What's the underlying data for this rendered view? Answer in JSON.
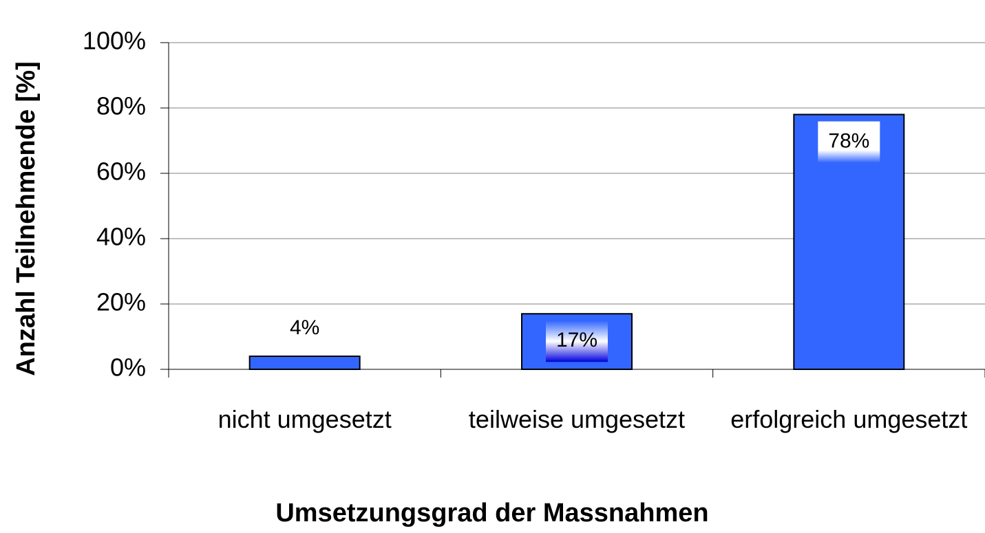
{
  "chart_data": {
    "type": "bar",
    "categories": [
      "nicht umgesetzt",
      "teilweise umgesetzt",
      "erfolgreich umgesetzt"
    ],
    "values": [
      4,
      17,
      78
    ],
    "value_labels": [
      "4%",
      "17%",
      "78%"
    ],
    "color": "#3366ff",
    "xlabel": "Umsetzungsgrad der Massnahmen",
    "ylabel": "Anzahl Teilnehmende [%]",
    "ylim": [
      0,
      100
    ],
    "yticks": [
      {
        "value": 0,
        "label": "0%"
      },
      {
        "value": 20,
        "label": "20%"
      },
      {
        "value": 40,
        "label": "40%"
      },
      {
        "value": 60,
        "label": "60%"
      },
      {
        "value": 80,
        "label": "80%"
      },
      {
        "value": 100,
        "label": "100%"
      }
    ],
    "grid": true
  }
}
